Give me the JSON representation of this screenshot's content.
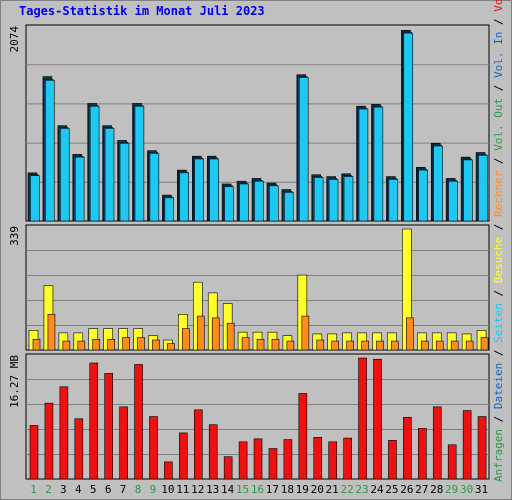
{
  "header": {
    "title": "Tages-Statistik im Monat Juli 2023"
  },
  "colors": {
    "background": "#c0c0c0",
    "hits": "#1fc8f0",
    "hits_dark": "#0a3a4a",
    "visits": "#ffff2a",
    "hosts": "#ff8c1a",
    "volume": "#ee1111",
    "weekday_label": "#000000",
    "weekend_label": "#2a9a4a",
    "title": "#0000ee"
  },
  "chart_data": [
    {
      "type": "bar",
      "panel": "top",
      "ymax_label": "2074",
      "ylim": [
        0,
        2074
      ],
      "grid": true,
      "categories": [
        "1",
        "2",
        "3",
        "4",
        "5",
        "6",
        "7",
        "8",
        "9",
        "10",
        "11",
        "12",
        "13",
        "14",
        "15",
        "16",
        "17",
        "18",
        "19",
        "20",
        "21",
        "22",
        "23",
        "24",
        "25",
        "26",
        "27",
        "28",
        "29",
        "30",
        "31"
      ],
      "series": [
        {
          "name": "Anfragen",
          "values": [
            520,
            1560,
            1030,
            720,
            1270,
            1030,
            870,
            1270,
            760,
            280,
            550,
            700,
            700,
            400,
            430,
            460,
            410,
            340,
            1580,
            500,
            480,
            510,
            1240,
            1260,
            480,
            2060,
            580,
            840,
            460,
            690,
            740
          ]
        },
        {
          "name": "Dateien",
          "values": [
            500,
            1530,
            1010,
            700,
            1250,
            1010,
            850,
            1250,
            740,
            260,
            530,
            680,
            680,
            380,
            410,
            440,
            390,
            320,
            1560,
            480,
            460,
            490,
            1220,
            1240,
            460,
            2040,
            560,
            820,
            440,
            670,
            720
          ]
        },
        {
          "name": "Seiten",
          "values": [
            490,
            1520,
            1000,
            690,
            1240,
            1000,
            840,
            1240,
            730,
            250,
            520,
            670,
            670,
            370,
            400,
            430,
            380,
            310,
            1550,
            470,
            450,
            480,
            1210,
            1230,
            450,
            2030,
            550,
            810,
            430,
            660,
            710
          ]
        }
      ]
    },
    {
      "type": "bar",
      "panel": "middle",
      "ymax_label": "339",
      "ylim": [
        0,
        339
      ],
      "grid": true,
      "categories": [
        "1",
        "2",
        "3",
        "4",
        "5",
        "6",
        "7",
        "8",
        "9",
        "10",
        "11",
        "12",
        "13",
        "14",
        "15",
        "16",
        "17",
        "18",
        "19",
        "20",
        "21",
        "22",
        "23",
        "24",
        "25",
        "26",
        "27",
        "28",
        "29",
        "30",
        "31"
      ],
      "series": [
        {
          "name": "Besuche",
          "values": [
            55,
            180,
            48,
            48,
            60,
            60,
            60,
            60,
            40,
            28,
            100,
            190,
            160,
            130,
            50,
            50,
            50,
            40,
            210,
            45,
            45,
            48,
            48,
            48,
            48,
            339,
            48,
            48,
            48,
            45,
            55
          ]
        },
        {
          "name": "Rechner",
          "values": [
            30,
            100,
            25,
            25,
            30,
            30,
            35,
            35,
            28,
            18,
            60,
            95,
            90,
            75,
            35,
            30,
            30,
            25,
            95,
            28,
            25,
            25,
            25,
            25,
            25,
            90,
            25,
            25,
            25,
            25,
            35
          ]
        }
      ]
    },
    {
      "type": "bar",
      "panel": "bottom",
      "ymax_label": "16.27 MB",
      "ylim": [
        0,
        16.27
      ],
      "grid": true,
      "categories": [
        "1",
        "2",
        "3",
        "4",
        "5",
        "6",
        "7",
        "8",
        "9",
        "10",
        "11",
        "12",
        "13",
        "14",
        "15",
        "16",
        "17",
        "18",
        "19",
        "20",
        "21",
        "22",
        "23",
        "24",
        "25",
        "26",
        "27",
        "28",
        "29",
        "30",
        "31"
      ],
      "series": [
        {
          "name": "Volumen",
          "values": [
            7.2,
            10.2,
            12.4,
            8.1,
            15.6,
            14.2,
            9.7,
            15.4,
            8.4,
            2.3,
            6.2,
            9.3,
            7.3,
            3.0,
            5.0,
            5.4,
            4.1,
            5.3,
            11.5,
            5.6,
            5.0,
            5.5,
            16.27,
            16.1,
            5.2,
            8.3,
            6.8,
            9.7,
            4.6,
            9.2,
            8.4
          ]
        }
      ]
    }
  ],
  "axis": {
    "x_labels": [
      "1",
      "2",
      "3",
      "4",
      "5",
      "6",
      "7",
      "8",
      "9",
      "10",
      "11",
      "12",
      "13",
      "14",
      "15",
      "16",
      "17",
      "18",
      "19",
      "20",
      "21",
      "22",
      "23",
      "24",
      "25",
      "26",
      "27",
      "28",
      "29",
      "30",
      "31"
    ],
    "weekend_days": [
      1,
      2,
      8,
      9,
      15,
      16,
      22,
      23,
      29,
      30
    ]
  },
  "legend_right": {
    "top": [
      {
        "text": "Anfragen",
        "color": "#2a9a4a"
      },
      {
        "text": " / ",
        "color": "#000000"
      },
      {
        "text": "Dateien",
        "color": "#1565c0"
      },
      {
        "text": " / ",
        "color": "#000000"
      },
      {
        "text": "Seiten",
        "color": "#1fc8f0"
      },
      {
        "text": " / ",
        "color": "#000000"
      },
      {
        "text": "Besuche",
        "color": "#ffff2a"
      },
      {
        "text": " / ",
        "color": "#000000"
      },
      {
        "text": "Rechner",
        "color": "#ff8c1a"
      },
      {
        "text": " / ",
        "color": "#000000"
      },
      {
        "text": "Vol. Out",
        "color": "#2a9a4a"
      },
      {
        "text": " / ",
        "color": "#000000"
      },
      {
        "text": "Vol. In",
        "color": "#1565c0"
      },
      {
        "text": " / ",
        "color": "#000000"
      },
      {
        "text": "Volumen",
        "color": "#ee1111"
      }
    ]
  }
}
